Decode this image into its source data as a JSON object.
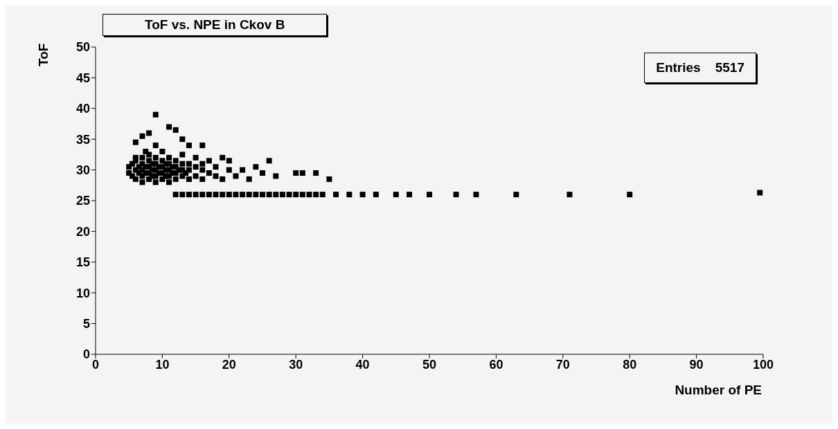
{
  "chart_data": {
    "type": "scatter",
    "title": "ToF vs. NPE in Ckov B",
    "xlabel": "Number of PE",
    "ylabel": "ToF",
    "annotations": [
      "Entries    5517"
    ],
    "xlim": [
      0,
      100
    ],
    "xticks": [
      0,
      10,
      20,
      30,
      40,
      50,
      60,
      70,
      80,
      90,
      100
    ],
    "ylim": [
      0,
      50
    ],
    "yticks": [
      0,
      5,
      10,
      15,
      20,
      25,
      30,
      35,
      40,
      45,
      50
    ],
    "grid": false,
    "legend": false,
    "marker": "square",
    "series": [
      {
        "color": "#000000",
        "x": [
          5,
          5,
          5.5,
          5.5,
          6,
          6,
          6,
          6,
          6.5,
          6.5,
          7,
          7,
          7,
          7,
          7,
          7.5,
          7.5,
          7.5,
          8,
          8,
          8,
          8,
          8,
          8.5,
          8.5,
          8.5,
          9,
          9,
          9,
          9,
          9,
          9,
          9.5,
          9.5,
          10,
          10,
          10,
          10,
          10,
          10.5,
          10.5,
          10.5,
          11,
          11,
          11,
          11,
          11,
          11.5,
          11.5,
          12,
          12,
          12,
          12,
          12.5,
          13,
          13,
          13,
          13,
          13.5,
          14,
          14,
          14,
          15,
          15,
          15,
          16,
          16,
          16,
          17,
          17,
          18,
          18,
          19,
          19,
          20,
          20,
          21,
          22,
          23,
          24,
          25,
          26,
          27,
          30,
          31,
          33,
          35,
          8,
          9,
          11,
          12,
          7,
          13,
          6,
          14,
          16,
          12,
          13,
          14,
          15,
          16,
          17,
          18,
          19,
          20,
          21,
          22,
          23,
          24,
          25,
          26,
          27,
          28,
          29,
          30,
          31,
          32,
          33,
          34,
          36,
          38,
          40,
          42,
          45,
          47,
          50,
          54,
          57,
          63,
          71,
          80,
          99.5
        ],
        "values": [
          29.5,
          30.5,
          31,
          29,
          28.5,
          30,
          31.5,
          32,
          29.5,
          30.5,
          28,
          29,
          30,
          31,
          32,
          29.5,
          30.5,
          33,
          28.5,
          29.5,
          30.5,
          31.5,
          32.5,
          29,
          30,
          31,
          28,
          29,
          30,
          31,
          32,
          34,
          29.5,
          30.5,
          28.5,
          29.5,
          30.5,
          31.5,
          33,
          29,
          30,
          31,
          28,
          29,
          30,
          31,
          32,
          29.5,
          30.5,
          28.5,
          29.5,
          30.5,
          31.5,
          30,
          29,
          30,
          31,
          32.5,
          29.5,
          28.5,
          30,
          31,
          29,
          30.5,
          32,
          28.5,
          30,
          31,
          29.5,
          31.5,
          29,
          30.5,
          28.5,
          32,
          30,
          31.5,
          29,
          30,
          28.5,
          30.5,
          29.5,
          31.5,
          29,
          29.5,
          29.5,
          29.5,
          28.5,
          36,
          39,
          37,
          36.5,
          35.5,
          35,
          34.5,
          34,
          34,
          26,
          26,
          26,
          26,
          26,
          26,
          26,
          26,
          26,
          26,
          26,
          26,
          26,
          26,
          26,
          26,
          26,
          26,
          26,
          26,
          26,
          26,
          26,
          26,
          26,
          26,
          26,
          26,
          26,
          26,
          26,
          26,
          26,
          26,
          26,
          26.3
        ]
      }
    ]
  }
}
